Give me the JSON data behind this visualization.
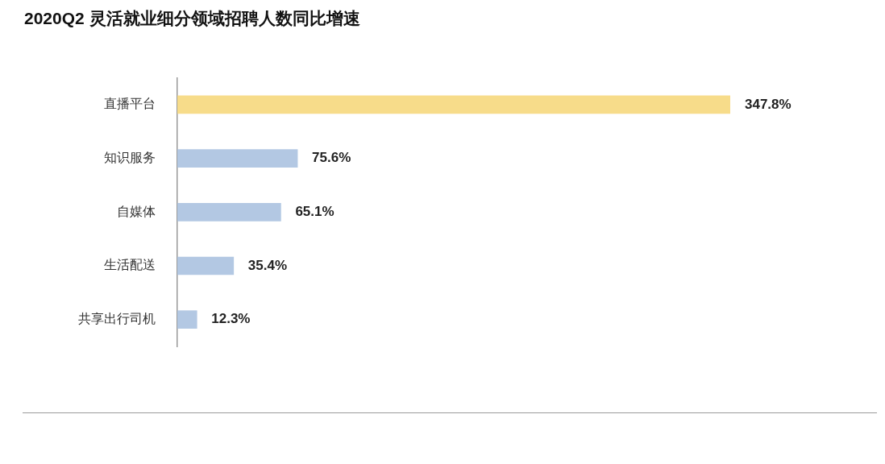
{
  "chart_data": {
    "type": "bar",
    "orientation": "horizontal",
    "title": "2020Q2 灵活就业细分领域招聘人数同比增速",
    "categories": [
      "直播平台",
      "知识服务",
      "自媒体",
      "生活配送",
      "共享出行司机"
    ],
    "values": [
      347.8,
      75.6,
      65.1,
      35.4,
      12.3
    ],
    "value_labels": [
      "347.8%",
      "75.6%",
      "65.1%",
      "35.4%",
      "12.3%"
    ],
    "colors": [
      "#f7dc8a",
      "#b3c8e3",
      "#b3c8e3",
      "#b3c8e3",
      "#b3c8e3"
    ]
  }
}
